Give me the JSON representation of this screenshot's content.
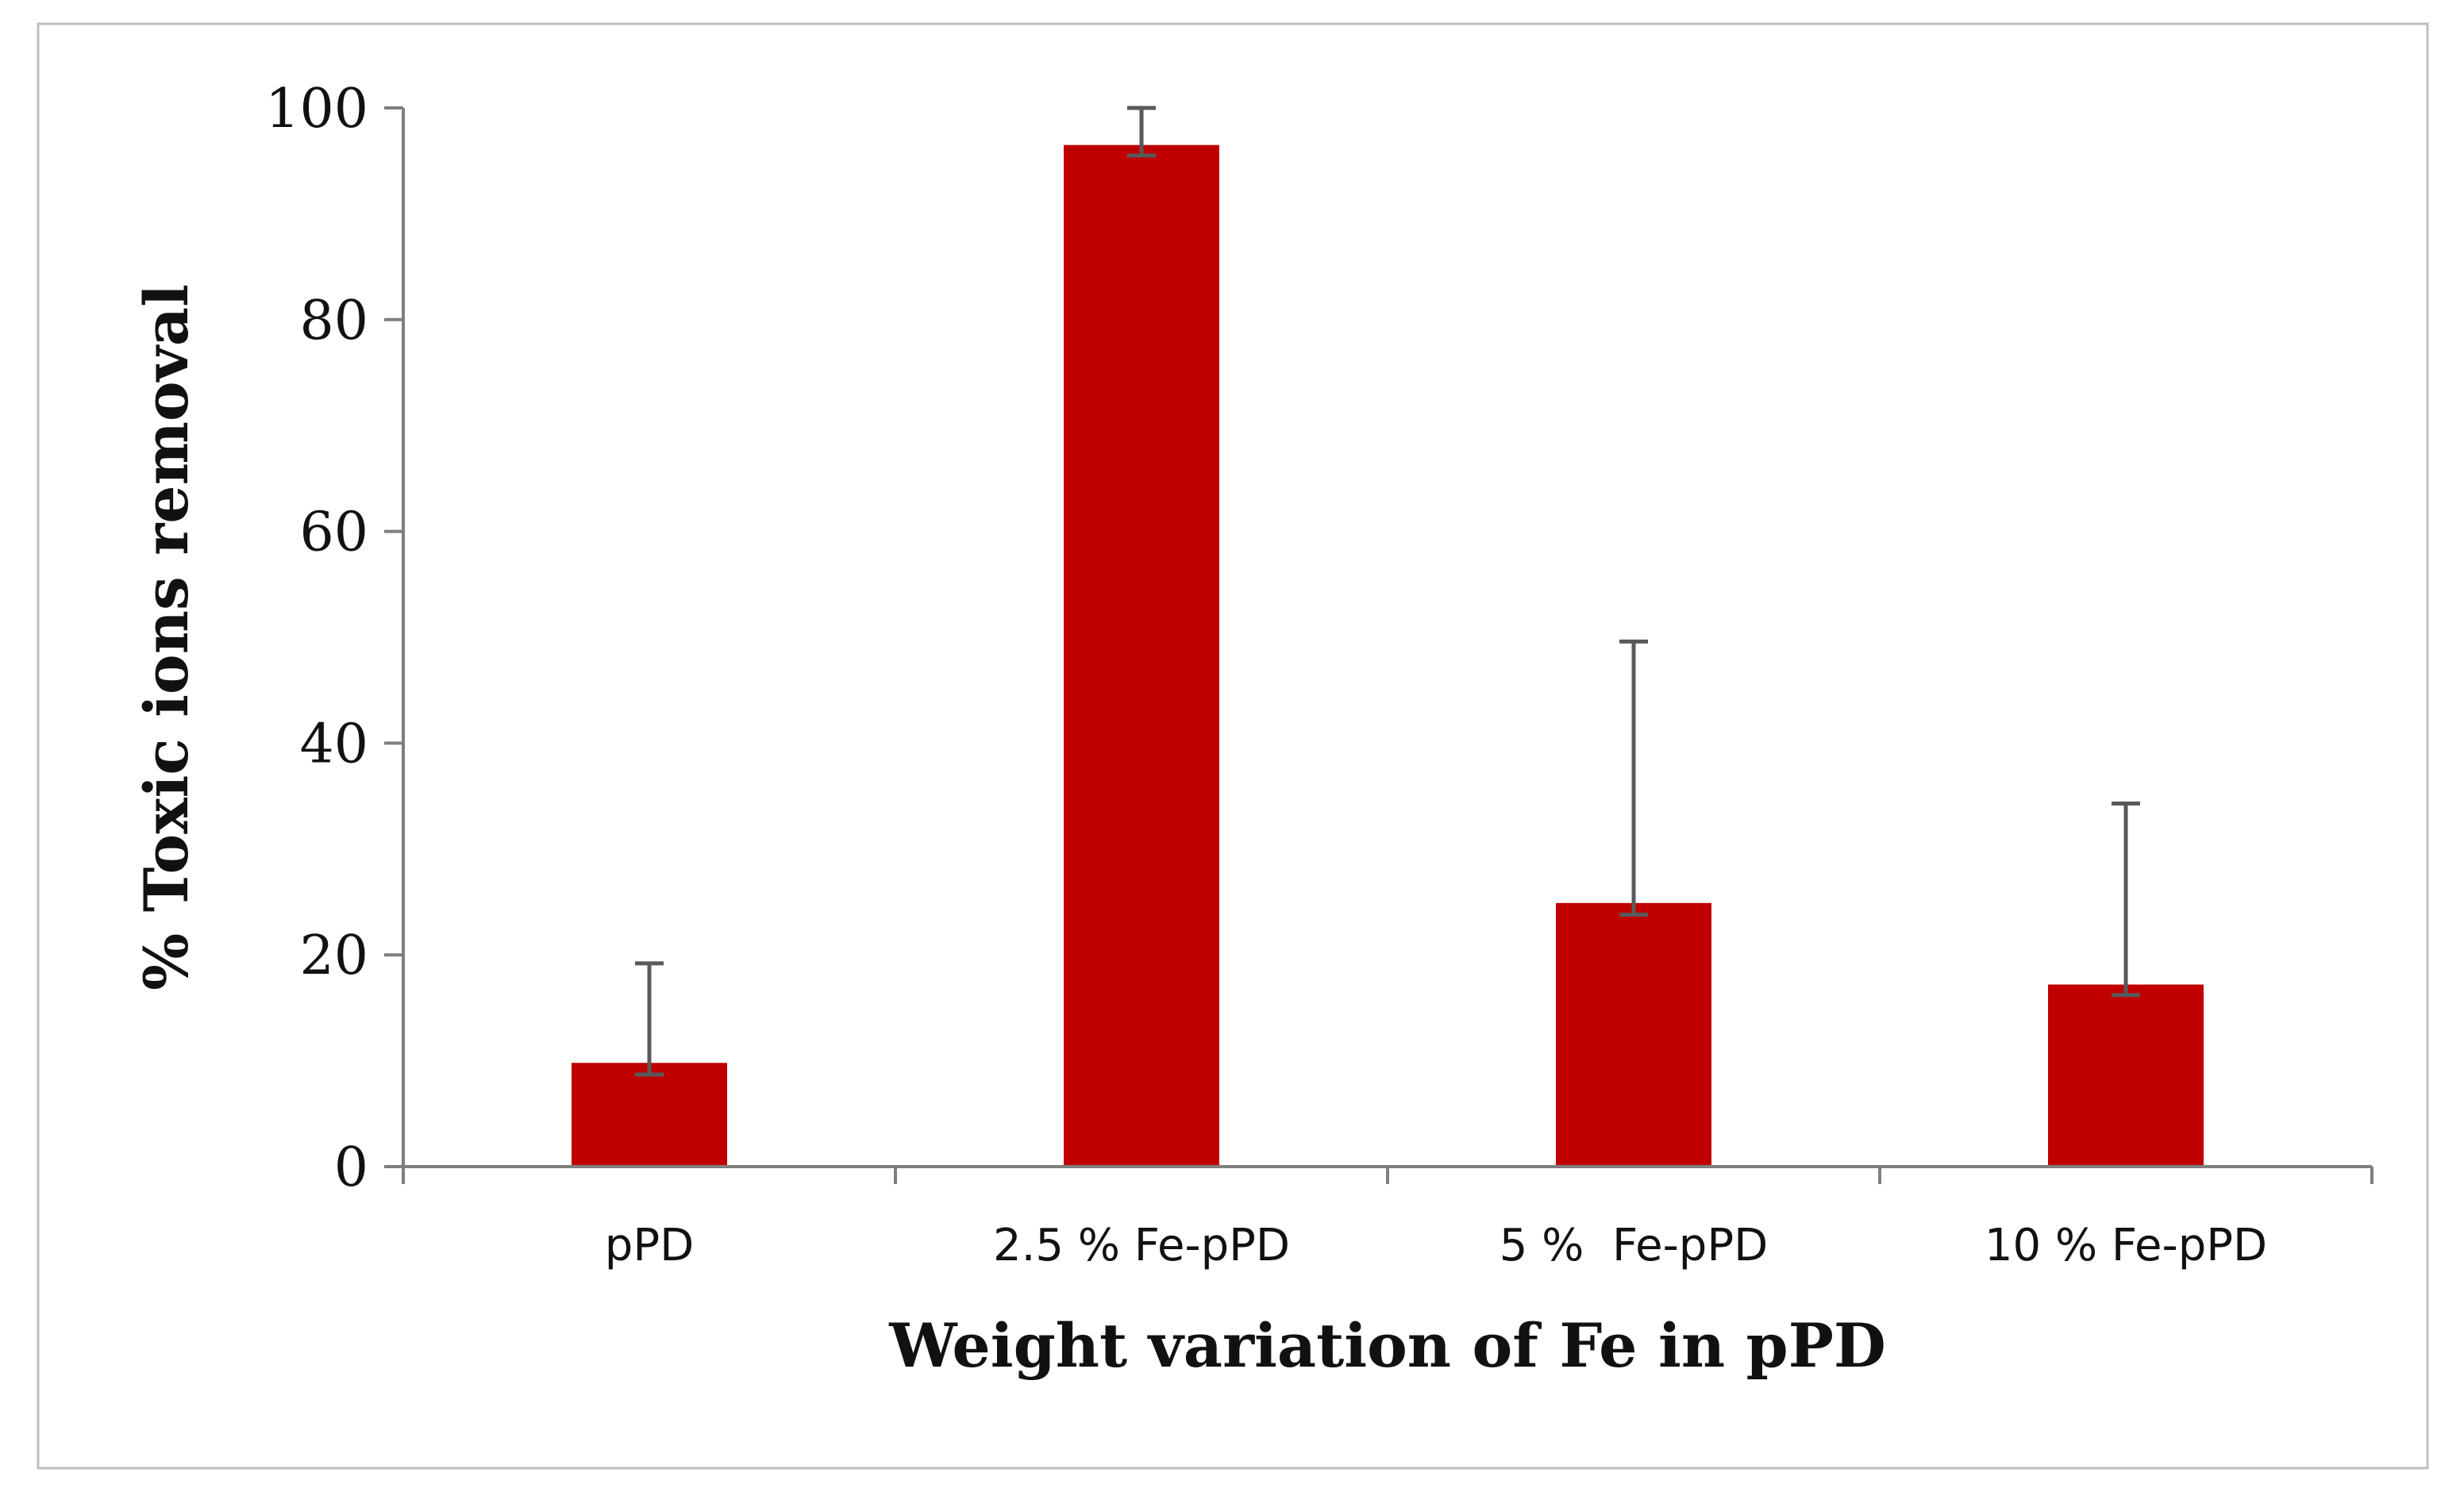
{
  "chart_data": {
    "type": "bar",
    "title": "",
    "categories": [
      "pPD",
      "2.5 % Fe-pPD",
      "5 %  Fe-pPD",
      "10 % Fe-pPD"
    ],
    "series": [
      {
        "name": "% Toxic ions removal",
        "values": [
          9.8,
          96.5,
          24.9,
          17.2
        ],
        "error_upper": [
          19.2,
          100,
          49.6,
          34.3
        ],
        "error_lower": [
          8.7,
          95.5,
          23.8,
          16.2
        ]
      }
    ],
    "xlabel": "Weight variation of Fe in pPD",
    "ylabel": "% Toxic ions removal",
    "ylim": [
      0,
      100
    ],
    "yticks": [
      0,
      20,
      40,
      60,
      80,
      100
    ],
    "ytick_labels": [
      "0",
      "20",
      "40",
      "60",
      "80",
      "100"
    ],
    "grid": false,
    "legend": "none",
    "colors": {
      "bar": "#C00000",
      "axis": "#7f7f7f",
      "error": "#595959",
      "frame": "#bfbfbf"
    }
  }
}
